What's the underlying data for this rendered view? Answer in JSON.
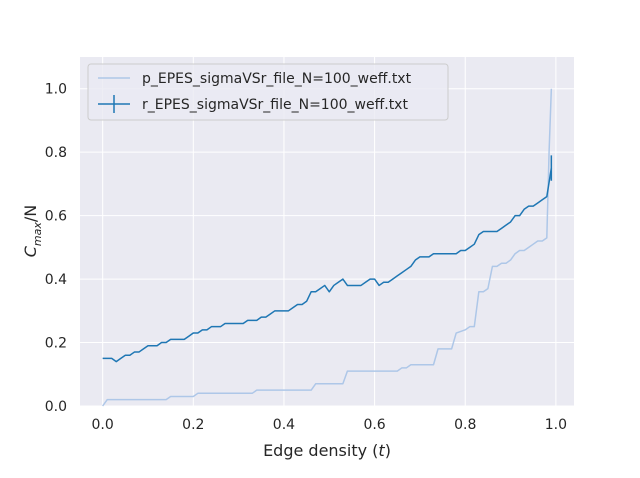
{
  "chart_data": {
    "type": "line",
    "xlabel": "Edge density (t)",
    "xlabel_parts": {
      "main": "Edge density (",
      "var": "t",
      "end": ")"
    },
    "ylabel": "C_max/N",
    "ylabel_parts": {
      "base": "C",
      "sub": "max",
      "rest": "/N"
    },
    "xlim": [
      -0.05,
      1.04
    ],
    "ylim": [
      0.0,
      1.1
    ],
    "grid": true,
    "legend_position": "top-left",
    "x_ticks": [
      0.0,
      0.2,
      0.4,
      0.6,
      0.8,
      1.0
    ],
    "x_tick_labels": [
      "0.0",
      "0.2",
      "0.4",
      "0.6",
      "0.8",
      "1.0"
    ],
    "y_ticks": [
      0.0,
      0.2,
      0.4,
      0.6,
      0.8,
      1.0
    ],
    "y_tick_labels": [
      "0.0",
      "0.2",
      "0.4",
      "0.6",
      "0.8",
      "1.0"
    ],
    "series": [
      {
        "name": "p_EPES_sigmaVSr_file_N=100_weff.txt",
        "color": "#aec7e8",
        "style": "line",
        "x": [
          0.0,
          0.01,
          0.02,
          0.03,
          0.14,
          0.15,
          0.2,
          0.21,
          0.33,
          0.34,
          0.46,
          0.47,
          0.53,
          0.54,
          0.65,
          0.66,
          0.67,
          0.68,
          0.73,
          0.74,
          0.77,
          0.78,
          0.8,
          0.81,
          0.82,
          0.83,
          0.84,
          0.85,
          0.86,
          0.87,
          0.88,
          0.89,
          0.9,
          0.91,
          0.92,
          0.93,
          0.94,
          0.95,
          0.96,
          0.97,
          0.98,
          0.985,
          0.99
        ],
        "y": [
          0.0,
          0.02,
          0.02,
          0.02,
          0.02,
          0.03,
          0.03,
          0.04,
          0.04,
          0.05,
          0.05,
          0.07,
          0.07,
          0.11,
          0.11,
          0.12,
          0.12,
          0.13,
          0.13,
          0.18,
          0.18,
          0.23,
          0.24,
          0.25,
          0.25,
          0.36,
          0.36,
          0.37,
          0.44,
          0.44,
          0.45,
          0.45,
          0.46,
          0.48,
          0.49,
          0.49,
          0.5,
          0.51,
          0.52,
          0.52,
          0.53,
          0.8,
          1.0
        ]
      },
      {
        "name": "r_EPES_sigmaVSr_file_N=100_weff.txt",
        "color": "#1f77b4",
        "style": "errorbar",
        "x": [
          0.0,
          0.01,
          0.02,
          0.03,
          0.04,
          0.05,
          0.06,
          0.07,
          0.08,
          0.09,
          0.1,
          0.11,
          0.12,
          0.13,
          0.14,
          0.15,
          0.16,
          0.17,
          0.18,
          0.19,
          0.2,
          0.21,
          0.22,
          0.23,
          0.24,
          0.25,
          0.26,
          0.27,
          0.28,
          0.29,
          0.3,
          0.31,
          0.32,
          0.33,
          0.34,
          0.35,
          0.36,
          0.37,
          0.38,
          0.39,
          0.4,
          0.41,
          0.42,
          0.43,
          0.44,
          0.45,
          0.46,
          0.47,
          0.48,
          0.49,
          0.5,
          0.51,
          0.52,
          0.53,
          0.54,
          0.55,
          0.56,
          0.57,
          0.58,
          0.59,
          0.6,
          0.61,
          0.62,
          0.63,
          0.64,
          0.65,
          0.66,
          0.67,
          0.68,
          0.69,
          0.7,
          0.71,
          0.72,
          0.73,
          0.74,
          0.75,
          0.76,
          0.77,
          0.78,
          0.79,
          0.8,
          0.81,
          0.82,
          0.83,
          0.84,
          0.85,
          0.86,
          0.87,
          0.88,
          0.89,
          0.9,
          0.91,
          0.92,
          0.93,
          0.94,
          0.95,
          0.96,
          0.97,
          0.98,
          0.99
        ],
        "y": [
          0.15,
          0.15,
          0.15,
          0.14,
          0.15,
          0.16,
          0.16,
          0.17,
          0.17,
          0.18,
          0.19,
          0.19,
          0.19,
          0.2,
          0.2,
          0.21,
          0.21,
          0.21,
          0.21,
          0.22,
          0.23,
          0.23,
          0.24,
          0.24,
          0.25,
          0.25,
          0.25,
          0.26,
          0.26,
          0.26,
          0.26,
          0.26,
          0.27,
          0.27,
          0.27,
          0.28,
          0.28,
          0.29,
          0.3,
          0.3,
          0.3,
          0.3,
          0.31,
          0.32,
          0.32,
          0.33,
          0.36,
          0.36,
          0.37,
          0.38,
          0.36,
          0.38,
          0.39,
          0.4,
          0.38,
          0.38,
          0.38,
          0.38,
          0.39,
          0.4,
          0.4,
          0.38,
          0.39,
          0.39,
          0.4,
          0.41,
          0.42,
          0.43,
          0.44,
          0.46,
          0.47,
          0.47,
          0.47,
          0.48,
          0.48,
          0.48,
          0.48,
          0.48,
          0.48,
          0.49,
          0.49,
          0.5,
          0.51,
          0.54,
          0.55,
          0.55,
          0.55,
          0.55,
          0.56,
          0.57,
          0.58,
          0.6,
          0.6,
          0.62,
          0.63,
          0.63,
          0.64,
          0.65,
          0.66,
          0.75
        ],
        "yerr_last": 0.04
      }
    ]
  }
}
